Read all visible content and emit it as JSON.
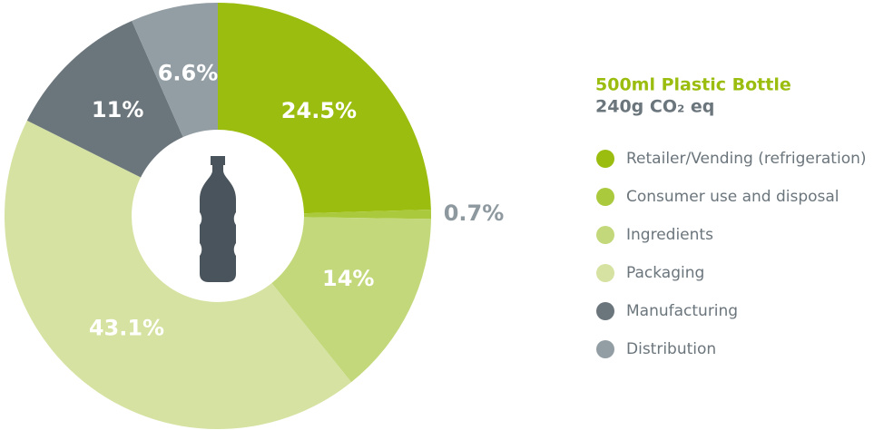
{
  "chart_data": {
    "type": "pie",
    "title": "500ml Plastic Bottle",
    "subtitle": "240g CO₂ eq",
    "categories": [
      "Retailer/Vending (refrigeration)",
      "Consumer use and disposal",
      "Ingredients",
      "Packaging",
      "Manufacturing",
      "Distribution"
    ],
    "values": [
      24.5,
      0.7,
      14,
      43.1,
      11,
      6.6
    ],
    "value_labels": [
      "24.5%",
      "0.7%",
      "14%",
      "43.1%",
      "11%",
      "6.6%"
    ],
    "colors": [
      "#9bbd0f",
      "#abc93c",
      "#c3d87a",
      "#d5e2a1",
      "#6b757c",
      "#939ea4"
    ],
    "legend": "right"
  }
}
